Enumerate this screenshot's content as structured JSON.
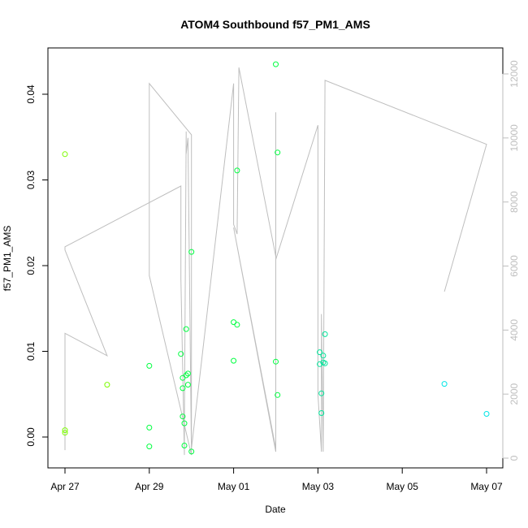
{
  "chart_data": {
    "type": "scatter",
    "title": "ATOM4 Southbound f57_PM1_AMS",
    "xlabel": "Date",
    "ylabel": "f57_PM1_AMS",
    "y2label": "",
    "x_ticks": [
      "Apr 27",
      "Apr 29",
      "May 01",
      "May 03",
      "May 05",
      "May 07"
    ],
    "y_ticks": [
      "0.00",
      "0.01",
      "0.02",
      "0.03",
      "0.04"
    ],
    "y2_ticks": [
      "0",
      "2000",
      "4000",
      "6000",
      "8000",
      "10000",
      "12000"
    ],
    "xlim": [
      "2020-04-27T00:00",
      "2020-05-07T00:00"
    ],
    "ylim": [
      -0.004,
      0.045
    ],
    "y2lim": [
      -200,
      12500
    ],
    "colors": {
      "line": "#bebebe",
      "points_early": "#7cfc00",
      "points_mid": "#00ff40",
      "points_late": "#00e5e5",
      "axis": "#000000",
      "right_axis": "#bebebe"
    },
    "points": [
      {
        "x": "2020-04-27T00:00",
        "y": 0.033
      },
      {
        "x": "2020-04-27T00:00",
        "y": 0.0008
      },
      {
        "x": "2020-04-27T00:00",
        "y": 0.0005
      },
      {
        "x": "2020-04-28T00:00",
        "y": 0.0061
      },
      {
        "x": "2020-04-29T00:00",
        "y": 0.0083
      },
      {
        "x": "2020-04-29T00:00",
        "y": 0.0011
      },
      {
        "x": "2020-04-29T00:00",
        "y": -0.0011
      },
      {
        "x": "2020-04-29T18:00",
        "y": 0.0097
      },
      {
        "x": "2020-04-29T19:00",
        "y": 0.0069
      },
      {
        "x": "2020-04-29T19:00",
        "y": 0.0057
      },
      {
        "x": "2020-04-29T19:00",
        "y": 0.0024
      },
      {
        "x": "2020-04-29T20:00",
        "y": 0.0016
      },
      {
        "x": "2020-04-29T20:00",
        "y": -0.001
      },
      {
        "x": "2020-04-29T21:00",
        "y": 0.0072
      },
      {
        "x": "2020-04-29T21:00",
        "y": 0.0126
      },
      {
        "x": "2020-04-29T22:00",
        "y": 0.0074
      },
      {
        "x": "2020-04-29T22:00",
        "y": 0.0061
      },
      {
        "x": "2020-04-30T00:00",
        "y": 0.0216
      },
      {
        "x": "2020-04-30T00:00",
        "y": -0.0017
      },
      {
        "x": "2020-05-01T00:00",
        "y": 0.0134
      },
      {
        "x": "2020-05-01T00:00",
        "y": 0.0089
      },
      {
        "x": "2020-05-01T02:00",
        "y": 0.0311
      },
      {
        "x": "2020-05-01T02:00",
        "y": 0.0131
      },
      {
        "x": "2020-05-02T00:00",
        "y": 0.0435
      },
      {
        "x": "2020-05-02T00:00",
        "y": 0.0088
      },
      {
        "x": "2020-05-02T01:00",
        "y": 0.0332
      },
      {
        "x": "2020-05-02T01:00",
        "y": 0.0049
      },
      {
        "x": "2020-05-03T01:00",
        "y": 0.0099
      },
      {
        "x": "2020-05-03T01:00",
        "y": 0.0085
      },
      {
        "x": "2020-05-03T02:00",
        "y": 0.0051
      },
      {
        "x": "2020-05-03T02:00",
        "y": 0.0028
      },
      {
        "x": "2020-05-03T03:00",
        "y": 0.0095
      },
      {
        "x": "2020-05-03T03:00",
        "y": 0.0087
      },
      {
        "x": "2020-05-03T04:00",
        "y": 0.0086
      },
      {
        "x": "2020-05-03T04:00",
        "y": 0.012
      },
      {
        "x": "2020-05-06T00:00",
        "y": 0.0062
      },
      {
        "x": "2020-05-07T00:00",
        "y": 0.0027
      }
    ],
    "line_y2": [
      {
        "x": "2020-04-27T00:00",
        "y": 250
      },
      {
        "x": "2020-04-27T00:00",
        "y": 3900
      },
      {
        "x": "2020-04-28T00:00",
        "y": 3200
      },
      {
        "x": "2020-04-27T00:00",
        "y": 6500
      },
      {
        "x": "2020-04-27T00:00",
        "y": 6600
      },
      {
        "x": "2020-04-29T18:00",
        "y": 8500
      },
      {
        "x": "2020-04-29T18:00",
        "y": 8300
      },
      {
        "x": "2020-04-29T18:00",
        "y": 5600
      },
      {
        "x": "2020-04-29T20:00",
        "y": 100
      },
      {
        "x": "2020-04-29T20:00",
        "y": 1000
      },
      {
        "x": "2020-04-29T21:00",
        "y": 10200
      },
      {
        "x": "2020-04-29T21:00",
        "y": 9500
      },
      {
        "x": "2020-04-29T22:00",
        "y": 10000
      },
      {
        "x": "2020-04-30T00:00",
        "y": 100
      },
      {
        "x": "2020-04-29T00:00",
        "y": 5700
      },
      {
        "x": "2020-04-29T00:00",
        "y": 11700
      },
      {
        "x": "2020-04-30T00:00",
        "y": 10100
      },
      {
        "x": "2020-04-30T00:00",
        "y": 1600
      },
      {
        "x": "2020-04-30T00:00",
        "y": 300
      },
      {
        "x": "2020-05-01T00:00",
        "y": 11700
      },
      {
        "x": "2020-05-01T00:00",
        "y": 7300
      },
      {
        "x": "2020-05-01T02:00",
        "y": 7000
      },
      {
        "x": "2020-05-01T03:00",
        "y": 12200
      },
      {
        "x": "2020-05-02T00:00",
        "y": 6300
      },
      {
        "x": "2020-05-02T00:00",
        "y": 10800
      },
      {
        "x": "2020-05-02T00:00",
        "y": 200
      },
      {
        "x": "2020-05-01T00:00",
        "y": 7200
      },
      {
        "x": "2020-05-02T00:00",
        "y": 300
      },
      {
        "x": "2020-05-02T00:00",
        "y": 6200
      },
      {
        "x": "2020-05-03T00:00",
        "y": 10400
      },
      {
        "x": "2020-05-03T00:00",
        "y": 2000
      },
      {
        "x": "2020-05-03T02:00",
        "y": 200
      },
      {
        "x": "2020-05-03T02:00",
        "y": 4500
      },
      {
        "x": "2020-05-03T03:00",
        "y": 200
      },
      {
        "x": "2020-05-03T04:00",
        "y": 11800
      },
      {
        "x": "2020-05-07T00:00",
        "y": 9800
      },
      {
        "x": "2020-05-06T00:00",
        "y": 5200
      }
    ]
  }
}
